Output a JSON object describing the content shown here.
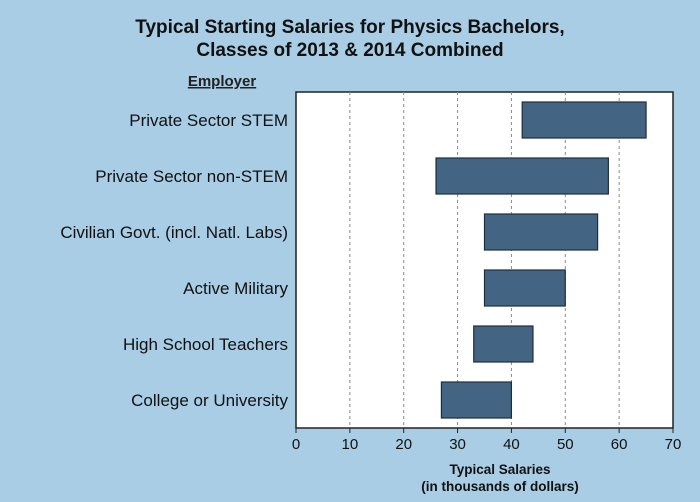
{
  "chart_data": {
    "type": "bar",
    "orientation": "horizontal-range",
    "title_lines": [
      "Typical Starting Salaries for Physics Bachelors,",
      "Classes of 2013 & 2014 Combined"
    ],
    "ylabel": "Employer",
    "xlabel_lines": [
      "Typical Salaries",
      "(in thousands of dollars)"
    ],
    "xlim": [
      0,
      70
    ],
    "xticks": [
      0,
      10,
      20,
      30,
      40,
      50,
      60,
      70
    ],
    "grid": true,
    "categories": [
      "Private Sector STEM",
      "Private Sector non-STEM",
      "Civilian Govt. (incl. Natl. Labs)",
      "Active Military",
      "High School Teachers",
      "College or University"
    ],
    "ranges": [
      [
        42,
        65
      ],
      [
        26,
        58
      ],
      [
        35,
        56
      ],
      [
        35,
        50
      ],
      [
        33,
        44
      ],
      [
        27,
        40
      ]
    ],
    "bar_color": "#436583"
  }
}
